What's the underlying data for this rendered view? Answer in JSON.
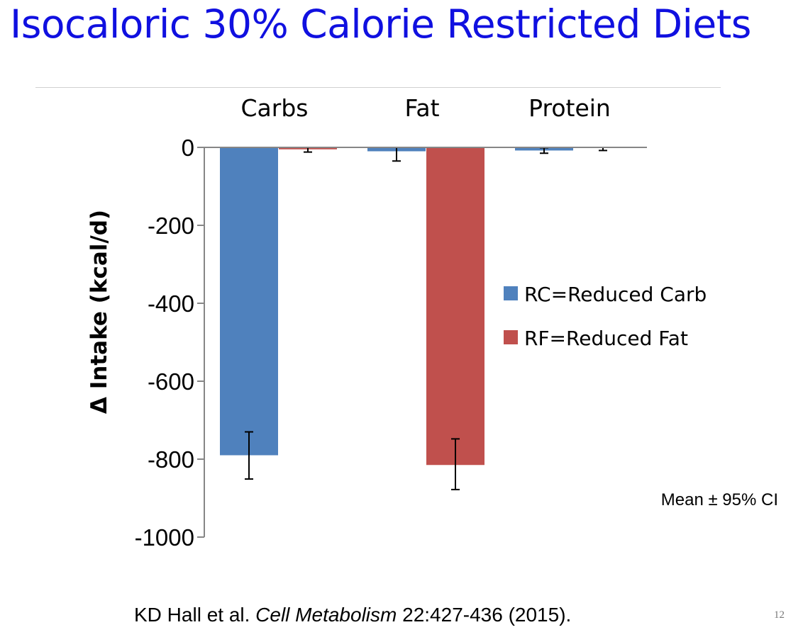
{
  "slide": {
    "title": "Isocaloric 30% Calorie Restricted Diets",
    "citation_authors": "KD Hall et al. ",
    "citation_journal": "Cell Metabolism",
    "citation_rest": " 22:427-436 (2015).",
    "page_number": "12"
  },
  "chart_data": {
    "type": "bar",
    "title": "",
    "categories": [
      "Carbs",
      "Fat",
      "Protein"
    ],
    "category_label_position": "top",
    "series": [
      {
        "name": "RC=Reduced Carb",
        "color": "#4f81bd",
        "values": [
          -790,
          -10,
          -8
        ],
        "ci_low": [
          -851,
          -35,
          -15
        ],
        "ci_high": [
          -730,
          0,
          -1
        ]
      },
      {
        "name": "RF=Reduced Fat",
        "color": "#c0504d",
        "values": [
          -5,
          -815,
          -1
        ],
        "ci_low": [
          -12,
          -878,
          -8
        ],
        "ci_high": [
          0,
          -748,
          0
        ]
      }
    ],
    "ylabel": "Δ Intake (kcal/d)",
    "xlabel": "",
    "ylim": [
      -1000,
      0
    ],
    "yticks": [
      0,
      -200,
      -400,
      -600,
      -800,
      -1000
    ],
    "ytick_labels": [
      "0",
      "-200",
      "-400",
      "-600",
      "-800",
      "-1000"
    ],
    "grid": false,
    "legend_position": "right",
    "annotation": "Mean ± 95% CI"
  }
}
